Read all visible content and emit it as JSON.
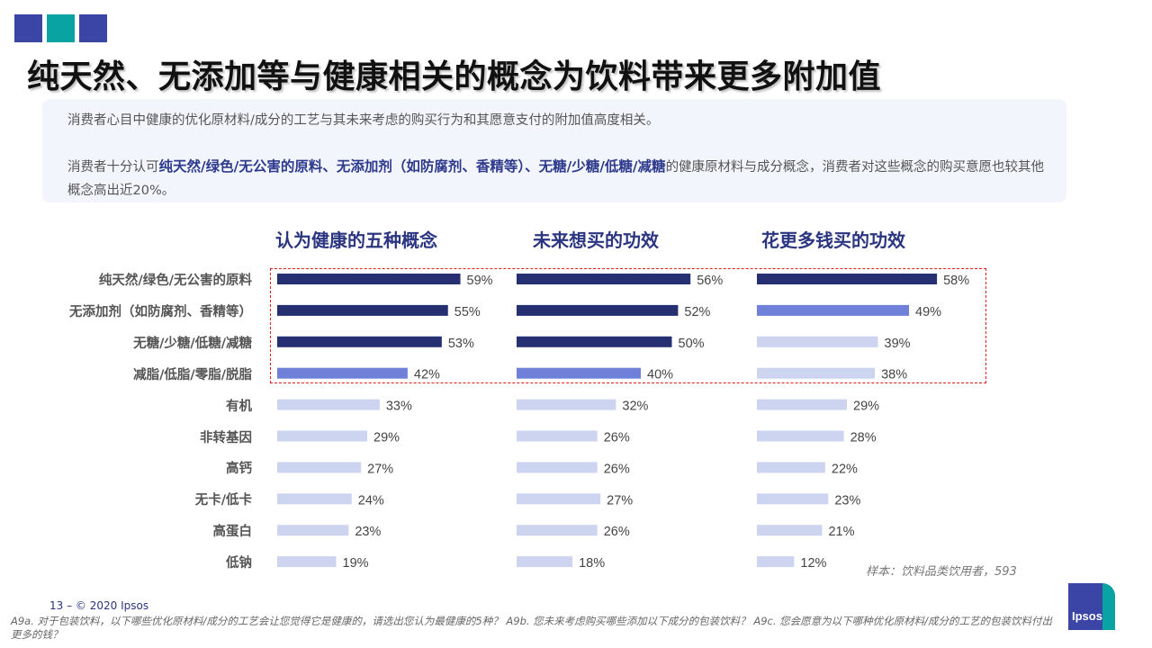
{
  "colors": {
    "sq1": "#3a45a6",
    "sq2": "#0aa3a3",
    "sq3": "#3a45a6",
    "dark": "#262f72",
    "medium": "#6f80d8",
    "light": "#cdd4f0"
  },
  "page": {
    "title": "纯天然、无添加等与健康相关的概念为饮料带来更多附加值",
    "callout_line1": "消费者心目中健康的优化原材料/成分的工艺与其未来考虑的购买行为和其愿意支付的附加值高度相关。",
    "callout_line2_pre": "消费者十分认可",
    "callout_line2_highlight": "纯天然/绿色/无公害的原料、无添加剂（如防腐剂、香精等）、无糖/少糖/低糖/减糖",
    "callout_line2_post": "的健康原材料与成分概念，消费者对这些概念的购买意愿也较其他概念高出近20%。",
    "sample_note": "样本：饮料品类饮用者，593",
    "page_number": "13 –  © 2020 Ipsos",
    "footnote": "A9a. 对于包装饮料，以下哪些优化原材料/成分的工艺会让您觉得它是健康的，请选出您认为最健康的5种？ A9b. 您未来考虑购买哪些添加以下成分的包装饮料？ A9c. 您会愿意为以下哪种优化原材料/成分的工艺的包装饮料付出更多的钱？",
    "logo_text": "Ipsos"
  },
  "chart_data": [
    {
      "type": "bar",
      "title": "认为健康的五种概念",
      "categories": [
        "纯天然/绿色/无公害的原料",
        "无添加剂（如防腐剂、香精等）",
        "无糖/少糖/低糖/减糖",
        "减脂/低脂/零脂/脱脂",
        "有机",
        "非转基因",
        "高钙",
        "无卡/低卡",
        "高蛋白",
        "低钠"
      ],
      "values": [
        59,
        55,
        53,
        42,
        33,
        29,
        27,
        24,
        23,
        19
      ],
      "shade": [
        "dark",
        "dark",
        "dark",
        "medium",
        "light",
        "light",
        "light",
        "light",
        "light",
        "light"
      ],
      "unit": "%"
    },
    {
      "type": "bar",
      "title": "未来想买的功效",
      "categories": [
        "纯天然/绿色/无公害的原料",
        "无添加剂（如防腐剂、香精等）",
        "无糖/少糖/低糖/减糖",
        "减脂/低脂/零脂/脱脂",
        "有机",
        "非转基因",
        "高钙",
        "无卡/低卡",
        "高蛋白",
        "低钠"
      ],
      "values": [
        56,
        52,
        50,
        40,
        32,
        26,
        26,
        27,
        26,
        18
      ],
      "shade": [
        "dark",
        "dark",
        "dark",
        "medium",
        "light",
        "light",
        "light",
        "light",
        "light",
        "light"
      ],
      "unit": "%"
    },
    {
      "type": "bar",
      "title": "花更多钱买的功效",
      "categories": [
        "纯天然/绿色/无公害的原料",
        "无添加剂（如防腐剂、香精等）",
        "无糖/少糖/低糖/减糖",
        "减脂/低脂/零脂/脱脂",
        "有机",
        "非转基因",
        "高钙",
        "无卡/低卡",
        "高蛋白",
        "低钠"
      ],
      "values": [
        58,
        49,
        39,
        38,
        29,
        28,
        22,
        23,
        21,
        12
      ],
      "shade": [
        "dark",
        "medium",
        "light",
        "light",
        "light",
        "light",
        "light",
        "light",
        "light",
        "light"
      ],
      "unit": "%"
    }
  ]
}
